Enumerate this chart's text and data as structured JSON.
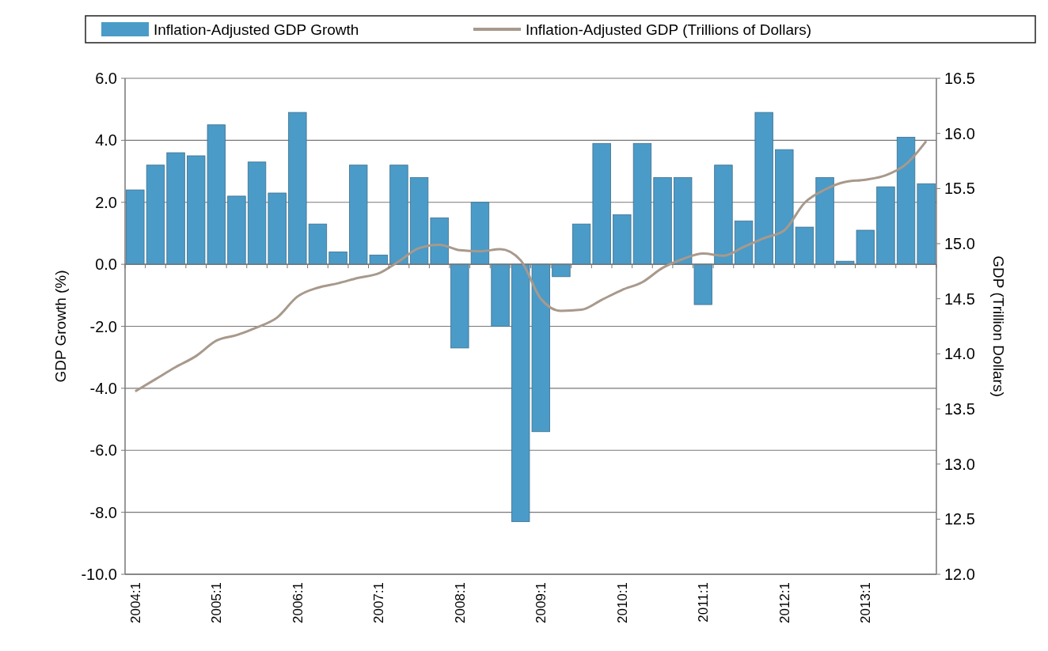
{
  "chart_data": {
    "type": "bar",
    "ylabel": "GDP Growth (%)",
    "y2label": "GDP (Trillion Dollars)",
    "categories": [
      "2004:1",
      null,
      null,
      null,
      "2005:1",
      null,
      null,
      null,
      "2006:1",
      null,
      null,
      null,
      "2007:1",
      null,
      null,
      null,
      "2008:1",
      null,
      null,
      null,
      "2009:1",
      null,
      null,
      null,
      "2010:1",
      null,
      null,
      null,
      "2011:1",
      null,
      null,
      null,
      "2012:1",
      null,
      null,
      null,
      "2013:1",
      null,
      null,
      null
    ],
    "series": [
      {
        "name": "Inflation-Adjusted GDP Growth",
        "color": "#4a9bc8",
        "values": [
          2.4,
          3.2,
          3.6,
          3.5,
          4.5,
          2.2,
          3.3,
          2.3,
          4.9,
          1.3,
          0.4,
          3.2,
          0.3,
          3.2,
          2.8,
          1.5,
          -2.7,
          2.0,
          -2.0,
          -8.3,
          -5.4,
          -0.4,
          1.3,
          3.9,
          1.6,
          3.9,
          2.8,
          2.8,
          -1.3,
          3.2,
          1.4,
          4.9,
          3.7,
          1.2,
          2.8,
          0.1,
          1.1,
          2.5,
          4.1,
          2.6
        ]
      },
      {
        "name": "Inflation-Adjusted GDP (Trillions of Dollars)",
        "type": "line",
        "axis": "y2",
        "color": "#a8998c",
        "values": [
          13.66,
          13.77,
          13.88,
          13.98,
          14.12,
          14.17,
          14.24,
          14.33,
          14.52,
          14.6,
          14.64,
          14.69,
          14.73,
          14.84,
          14.96,
          14.99,
          14.94,
          14.93,
          14.95,
          14.85,
          14.5,
          14.39,
          14.4,
          14.49,
          14.58,
          14.65,
          14.78,
          14.86,
          14.91,
          14.89,
          14.97,
          15.05,
          15.12,
          15.37,
          15.49,
          15.56,
          15.58,
          15.62,
          15.72,
          15.93
        ]
      }
    ],
    "ylim": [
      -10,
      6
    ],
    "yticks": [
      {
        "value": -10,
        "label": "-10.0"
      },
      {
        "value": -8,
        "label": "-8.0"
      },
      {
        "value": -6,
        "label": "-6.0"
      },
      {
        "value": -4,
        "label": "-4.0"
      },
      {
        "value": -2,
        "label": "-2.0"
      },
      {
        "value": 0,
        "label": "0.0"
      },
      {
        "value": 2,
        "label": "2.0"
      },
      {
        "value": 4,
        "label": "4.0"
      },
      {
        "value": 6,
        "label": "6.0"
      }
    ],
    "y2lim": [
      12,
      16.5
    ],
    "y2ticks": [
      {
        "value": 12,
        "label": "12.0"
      },
      12.5,
      {
        "value": 13,
        "label": "13.0"
      },
      13.5,
      {
        "value": 14,
        "label": "14.0"
      },
      14.5,
      {
        "value": 15,
        "label": "15.0"
      },
      15.5,
      {
        "value": 16,
        "label": "16.0"
      },
      16.5
    ],
    "grid": "y",
    "legend": "top",
    "marker": "none"
  }
}
